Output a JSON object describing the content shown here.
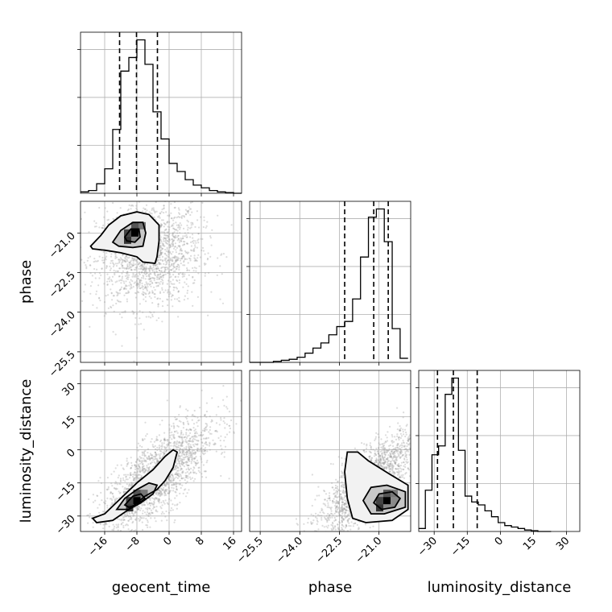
{
  "chart_data": {
    "type": "corner",
    "parameters": [
      "geocent_time",
      "phase",
      "luminosity_distance"
    ],
    "grid": true,
    "ranges": {
      "geocent_time": [
        -22,
        18
      ],
      "phase": [
        -25.9,
        -19.8
      ],
      "luminosity_distance": [
        -37,
        36
      ]
    },
    "ticks": {
      "geocent_time": {
        "values": [
          -16,
          -8,
          0,
          8,
          16
        ],
        "labels": [
          "−16",
          "−8",
          "0",
          "8",
          "16"
        ]
      },
      "phase": {
        "values": [
          -25.5,
          -24.0,
          -22.5,
          -21.0
        ],
        "labels": [
          "−25.5",
          "−24.0",
          "−22.5",
          "−21.0"
        ]
      },
      "luminosity_distance": {
        "values": [
          -30,
          -15,
          0,
          15,
          30
        ],
        "labels": [
          "−30",
          "−15",
          "0",
          "15",
          "30"
        ]
      }
    },
    "marginals": [
      {
        "parameter": "geocent_time",
        "bin_edges": [
          -22,
          -20,
          -18,
          -16,
          -14,
          -12,
          -10,
          -8,
          -6,
          -4,
          -2,
          0,
          2,
          4,
          6,
          8,
          10,
          12,
          14,
          16,
          18
        ],
        "counts": [
          1,
          2,
          7,
          18,
          47,
          90,
          100,
          113,
          95,
          60,
          40,
          22,
          16,
          10,
          6,
          4,
          2,
          1,
          0.5,
          0
        ],
        "quantiles": [
          -12.3,
          -8.1,
          -2.9
        ]
      },
      {
        "parameter": "phase",
        "bin_edges": [
          -25.9,
          -25.6,
          -25.3,
          -25.0,
          -24.7,
          -24.4,
          -24.1,
          -23.8,
          -23.5,
          -23.2,
          -22.9,
          -22.6,
          -22.3,
          -22.0,
          -21.7,
          -21.4,
          -21.1,
          -20.8,
          -20.5,
          -20.2,
          -19.9
        ],
        "counts": [
          0,
          0,
          0,
          1,
          2,
          3,
          5,
          9,
          14,
          19,
          27,
          35,
          40,
          62,
          103,
          142,
          150,
          118,
          33,
          4
        ],
        "quantiles": [
          -22.3,
          -21.2,
          -20.65
        ]
      },
      {
        "parameter": "luminosity_distance",
        "bin_edges": [
          -37,
          -34,
          -31,
          -28,
          -25,
          -22,
          -19,
          -16,
          -13,
          -10,
          -7,
          -4,
          -1,
          2,
          5,
          8,
          11,
          14,
          17,
          20,
          23
        ],
        "counts": [
          2,
          28,
          52,
          58,
          93,
          104,
          55,
          24,
          20,
          18,
          14,
          10,
          6,
          4,
          3,
          2,
          1,
          0.5,
          0,
          0
        ],
        "quantiles": [
          -28.5,
          -21.3,
          -10.5
        ]
      }
    ],
    "pairs": [
      {
        "x": "geocent_time",
        "y": "phase",
        "density_peak": [
          -8.5,
          -21.0
        ],
        "point_cloud": {
          "center": [
            -5,
            -21.8
          ],
          "spread": [
            6.5,
            1.0
          ],
          "count": 1800
        },
        "contours": [
          [
            [
              -19.5,
              -21.5
            ],
            [
              -17,
              -21.1
            ],
            [
              -15,
              -20.7
            ],
            [
              -12,
              -20.35
            ],
            [
              -8,
              -20.2
            ],
            [
              -5,
              -20.3
            ],
            [
              -2.5,
              -20.7
            ],
            [
              -2.5,
              -21.3
            ],
            [
              -3,
              -21.9
            ],
            [
              -3.5,
              -22.15
            ],
            [
              -6.5,
              -22.1
            ],
            [
              -8,
              -21.9
            ],
            [
              -12,
              -21.75
            ],
            [
              -16,
              -21.65
            ],
            [
              -19,
              -21.6
            ]
          ],
          [
            [
              -14,
              -21.35
            ],
            [
              -12,
              -20.9
            ],
            [
              -9,
              -20.6
            ],
            [
              -6.5,
              -20.6
            ],
            [
              -5.8,
              -21.0
            ],
            [
              -6.5,
              -21.5
            ],
            [
              -9,
              -21.55
            ],
            [
              -12.5,
              -21.5
            ]
          ],
          [
            [
              -11,
              -21.15
            ],
            [
              -9.5,
              -20.85
            ],
            [
              -7.5,
              -20.85
            ],
            [
              -7.2,
              -21.15
            ],
            [
              -8.5,
              -21.35
            ],
            [
              -10.5,
              -21.3
            ]
          ]
        ]
      },
      {
        "x": "geocent_time",
        "y": "luminosity_distance",
        "density_peak": [
          -8,
          -23
        ],
        "point_cloud": {
          "center": [
            -3,
            -12
          ],
          "spread": [
            7,
            13
          ],
          "count": 2000
        },
        "contours": [
          [
            [
              -19,
              -31
            ],
            [
              -16,
              -29
            ],
            [
              -12,
              -22
            ],
            [
              -8,
              -15
            ],
            [
              -4,
              -9
            ],
            [
              -1,
              -3
            ],
            [
              1,
              0
            ],
            [
              2,
              -1
            ],
            [
              1,
              -8
            ],
            [
              -1,
              -14
            ],
            [
              -3,
              -18
            ],
            [
              -6,
              -21
            ],
            [
              -10,
              -27
            ],
            [
              -14,
              -32
            ],
            [
              -18,
              -33
            ]
          ],
          [
            [
              -13,
              -27
            ],
            [
              -11,
              -22
            ],
            [
              -8,
              -18
            ],
            [
              -5,
              -15
            ],
            [
              -3,
              -16
            ],
            [
              -4,
              -20
            ],
            [
              -7,
              -24
            ],
            [
              -10,
              -27
            ]
          ],
          [
            [
              -11,
              -25
            ],
            [
              -9,
              -21
            ],
            [
              -7,
              -20
            ],
            [
              -6,
              -22
            ],
            [
              -8,
              -25
            ],
            [
              -10,
              -26
            ]
          ]
        ]
      },
      {
        "x": "phase",
        "y": "luminosity_distance",
        "density_peak": [
          -20.7,
          -23
        ],
        "point_cloud": {
          "center": [
            -21.4,
            -15
          ],
          "spread": [
            0.9,
            11
          ],
          "count": 2000
        },
        "contours": [
          [
            [
              -22.2,
              -1
            ],
            [
              -21.8,
              -1
            ],
            [
              -21.4,
              -5
            ],
            [
              -20.6,
              -11
            ],
            [
              -19.9,
              -16
            ],
            [
              -19.9,
              -27
            ],
            [
              -20.5,
              -32
            ],
            [
              -21.5,
              -33
            ],
            [
              -22.0,
              -31
            ],
            [
              -22.2,
              -22
            ],
            [
              -22.3,
              -10
            ]
          ],
          [
            [
              -21.6,
              -23
            ],
            [
              -21.3,
              -17
            ],
            [
              -20.7,
              -16
            ],
            [
              -20.0,
              -19
            ],
            [
              -20.0,
              -26
            ],
            [
              -20.8,
              -29
            ],
            [
              -21.3,
              -29
            ]
          ],
          [
            [
              -21.2,
              -24
            ],
            [
              -21.0,
              -20
            ],
            [
              -20.5,
              -19
            ],
            [
              -20.2,
              -22
            ],
            [
              -20.4,
              -26
            ],
            [
              -20.9,
              -27
            ]
          ]
        ]
      }
    ]
  }
}
